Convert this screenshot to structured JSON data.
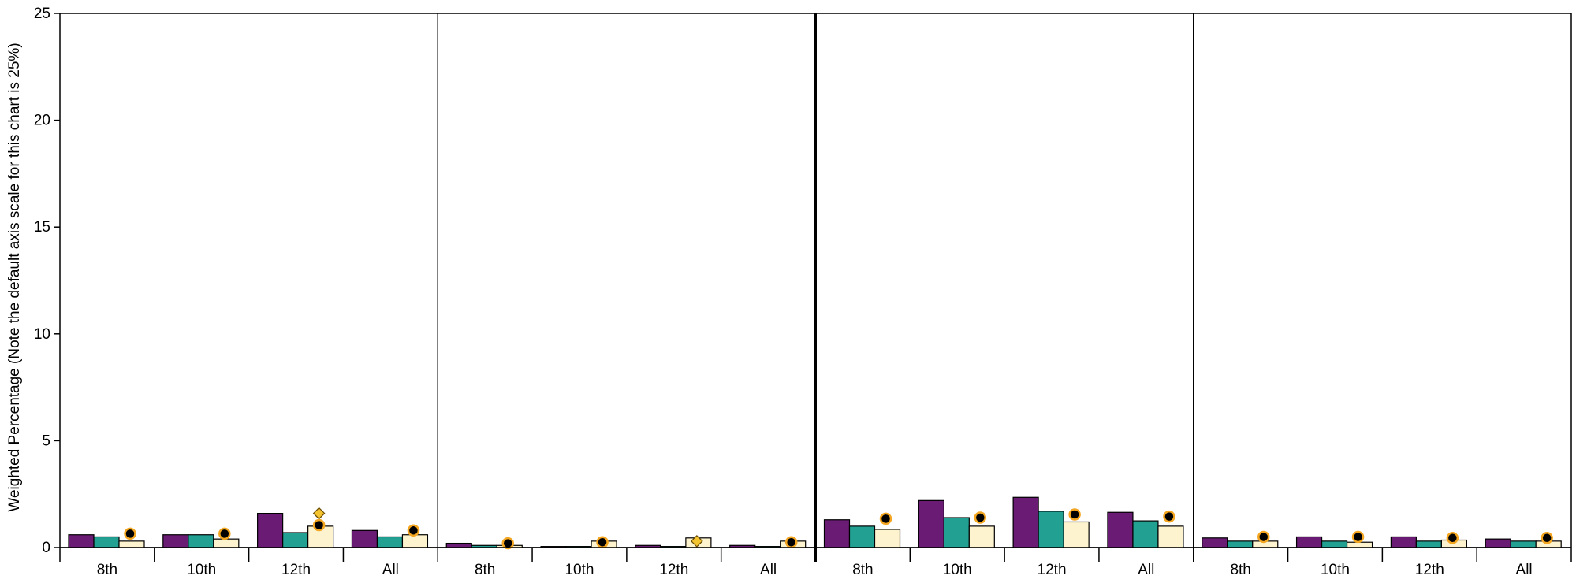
{
  "chart_data": {
    "type": "bar",
    "ylabel": "Weighted Percentage (Note the default axis scale for this chart is 25%)",
    "ylim": [
      0,
      25
    ],
    "yticks": [
      0,
      5,
      10,
      15,
      20,
      25
    ],
    "ytick_labels": [
      "0",
      "5",
      "10",
      "15",
      "20",
      "25"
    ],
    "grid": false,
    "colors": {
      "series1": "#6a1b74",
      "series2": "#22a092",
      "series3": "#fdf3cf",
      "circle_marker": "#000000",
      "circle_outline": "#f4a620",
      "diamond_marker": "#f4c430",
      "axis": "#000000"
    },
    "panels": [
      {
        "categories": [
          "8th",
          "10th",
          "12th",
          "All"
        ],
        "series1": [
          0.6,
          0.6,
          1.6,
          0.8
        ],
        "series2": [
          0.5,
          0.6,
          0.7,
          0.5
        ],
        "series3": [
          0.3,
          0.4,
          1.0,
          0.6
        ],
        "circle_markers": [
          0.65,
          0.65,
          1.05,
          0.8
        ],
        "diamond_markers": [
          null,
          null,
          1.6,
          null
        ]
      },
      {
        "categories": [
          "8th",
          "10th",
          "12th",
          "All"
        ],
        "series1": [
          0.2,
          0.05,
          0.1,
          0.1
        ],
        "series2": [
          0.1,
          0.05,
          0.05,
          0.05
        ],
        "series3": [
          0.1,
          0.3,
          0.45,
          0.3
        ],
        "circle_markers": [
          0.2,
          0.25,
          null,
          0.25
        ],
        "diamond_markers": [
          null,
          null,
          0.3,
          null
        ]
      },
      {
        "categories": [
          "8th",
          "10th",
          "12th",
          "All"
        ],
        "series1": [
          1.3,
          2.2,
          2.35,
          1.65
        ],
        "series2": [
          1.0,
          1.4,
          1.7,
          1.25
        ],
        "series3": [
          0.85,
          1.0,
          1.2,
          1.0
        ],
        "circle_markers": [
          1.35,
          1.4,
          1.55,
          1.45
        ],
        "diamond_markers": [
          null,
          null,
          null,
          null
        ]
      },
      {
        "categories": [
          "8th",
          "10th",
          "12th",
          "All"
        ],
        "series1": [
          0.45,
          0.5,
          0.5,
          0.4
        ],
        "series2": [
          0.3,
          0.3,
          0.3,
          0.3
        ],
        "series3": [
          0.3,
          0.25,
          0.35,
          0.3
        ],
        "circle_markers": [
          0.5,
          0.5,
          0.45,
          0.45
        ],
        "diamond_markers": [
          null,
          null,
          null,
          null
        ]
      }
    ]
  }
}
